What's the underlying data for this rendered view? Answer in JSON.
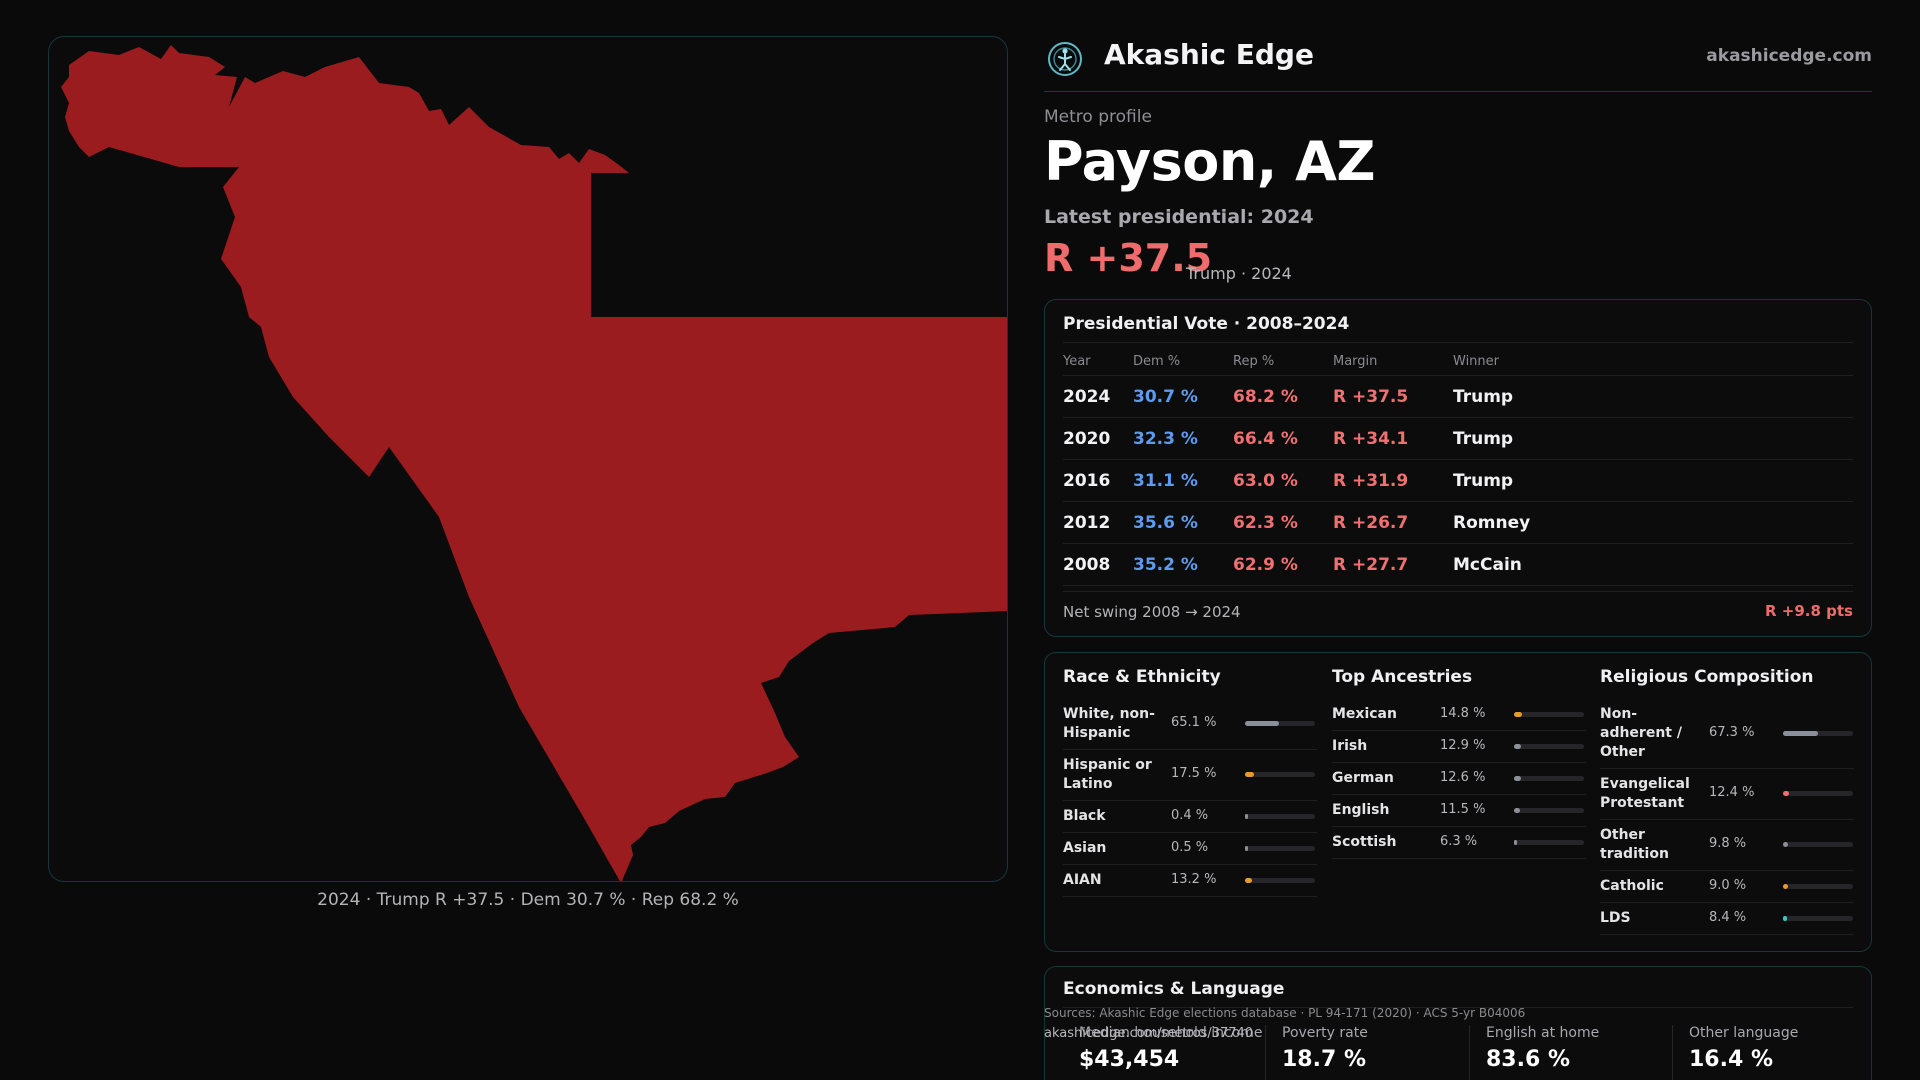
{
  "map": {
    "fill_color": "#9b1c1f",
    "caption": "2024 · Trump R +37.5 · Dem 30.7 % · Rep 68.2 %"
  },
  "brand": {
    "name": "Akashic Edge",
    "site": "akashicedge.com",
    "logo_icon": "globe-figure-icon"
  },
  "profile": {
    "eyebrow": "Metro profile",
    "title": "Payson, AZ",
    "latest_label": "Latest presidential: 2024",
    "margin": "R +37.5",
    "margin_sub": "Trump · 2024"
  },
  "vote": {
    "title": "Presidential Vote · 2008–2024",
    "headers": [
      "Year",
      "Dem %",
      "Rep %",
      "Margin",
      "Winner"
    ],
    "rows": [
      {
        "year": "2024",
        "dem": "30.7 %",
        "rep": "68.2 %",
        "margin": "R +37.5",
        "winner": "Trump"
      },
      {
        "year": "2020",
        "dem": "32.3 %",
        "rep": "66.4 %",
        "margin": "R +34.1",
        "winner": "Trump"
      },
      {
        "year": "2016",
        "dem": "31.1 %",
        "rep": "63.0 %",
        "margin": "R +31.9",
        "winner": "Trump"
      },
      {
        "year": "2012",
        "dem": "35.6 %",
        "rep": "62.3 %",
        "margin": "R +26.7",
        "winner": "Romney"
      },
      {
        "year": "2008",
        "dem": "35.2 %",
        "rep": "62.9 %",
        "margin": "R +27.7",
        "winner": "McCain"
      }
    ],
    "swing_label": "Net swing 2008 → 2024",
    "swing_value": "R +9.8 pts"
  },
  "race": {
    "title": "Race & Ethnicity",
    "items": [
      {
        "label": "White, non-Hispanic",
        "pct": "65.1 %",
        "value": 65.1,
        "color": "#8a8f99"
      },
      {
        "label": "Hispanic or Latino",
        "pct": "17.5 %",
        "value": 17.5,
        "color": "#e89a2c"
      },
      {
        "label": "Black",
        "pct": "0.4 %",
        "value": 0.4,
        "color": "#8a8f99"
      },
      {
        "label": "Asian",
        "pct": "0.5 %",
        "value": 0.5,
        "color": "#8a8f99"
      },
      {
        "label": "AIAN",
        "pct": "13.2 %",
        "value": 13.2,
        "color": "#e89a2c"
      }
    ]
  },
  "ancestry": {
    "title": "Top Ancestries",
    "items": [
      {
        "label": "Mexican",
        "pct": "14.8 %",
        "value": 14.8,
        "color": "#e89a2c"
      },
      {
        "label": "Irish",
        "pct": "12.9 %",
        "value": 12.9,
        "color": "#8a8f99"
      },
      {
        "label": "German",
        "pct": "12.6 %",
        "value": 12.6,
        "color": "#8a8f99"
      },
      {
        "label": "English",
        "pct": "11.5 %",
        "value": 11.5,
        "color": "#8a8f99"
      },
      {
        "label": "Scottish",
        "pct": "6.3 %",
        "value": 6.3,
        "color": "#8a8f99"
      }
    ]
  },
  "religion": {
    "title": "Religious Composition",
    "items": [
      {
        "label": "Non-adherent / Other",
        "pct": "67.3 %",
        "value": 67.3,
        "color": "#8a8f99"
      },
      {
        "label": "Evangelical Protestant",
        "pct": "12.4 %",
        "value": 12.4,
        "color": "#f06b6b"
      },
      {
        "label": "Other tradition",
        "pct": "9.8 %",
        "value": 9.8,
        "color": "#8a8f99"
      },
      {
        "label": "Catholic",
        "pct": "9.0 %",
        "value": 9.0,
        "color": "#e89a2c"
      },
      {
        "label": "LDS",
        "pct": "8.4 %",
        "value": 8.4,
        "color": "#3cc6c0"
      }
    ]
  },
  "econ": {
    "title": "Economics & Language",
    "cells": [
      {
        "label": "Median household income",
        "value": "$43,454"
      },
      {
        "label": "Poverty rate",
        "value": "18.7 %"
      },
      {
        "label": "English at home",
        "value": "83.6 %"
      },
      {
        "label": "Other language",
        "value": "16.4 %"
      }
    ]
  },
  "footer": {
    "sources": "Sources: Akashic Edge elections database · PL 94-171 (2020) · ACS 5-yr B04006",
    "url": "akashicedge.com/metros/37740"
  }
}
